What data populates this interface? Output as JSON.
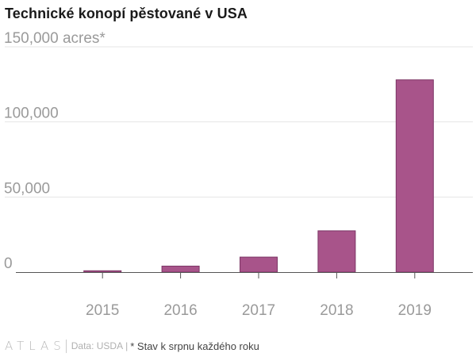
{
  "title": "Technické konopí pěstované v USA",
  "colors": {
    "bar": "#a8548a",
    "bar_outline": "#7c3565",
    "grid": "#e6e6e6",
    "axis": "#555555",
    "tick_text": "#9a9a9a"
  },
  "chart_data": {
    "type": "bar",
    "title": "Technické konopí pěstované v USA",
    "categories": [
      "2015",
      "2016",
      "2017",
      "2018",
      "2019"
    ],
    "values": [
      900,
      4000,
      10000,
      27500,
      128000
    ],
    "ylim": [
      0,
      150000
    ],
    "yticks": [
      0,
      50000,
      100000,
      150000
    ],
    "ytick_labels": [
      "0",
      "50,000",
      "100,000",
      "150,000 acres*"
    ],
    "grid": true,
    "xlabel": "",
    "ylabel": ""
  },
  "footer": {
    "brand": "ATLAS",
    "source": "Data: USDA",
    "pipe": "|",
    "note": "* Stav k srpnu každého roku"
  }
}
